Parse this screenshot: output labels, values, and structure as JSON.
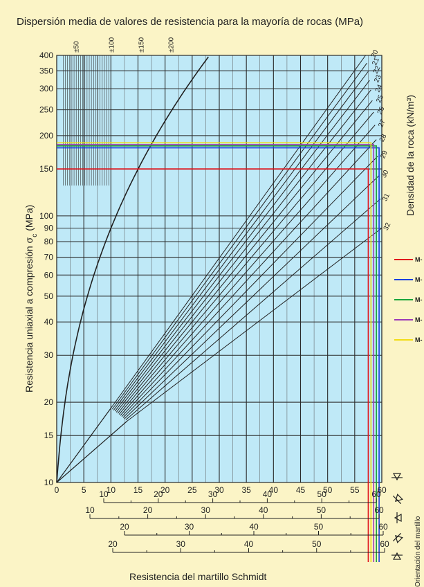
{
  "chart_data": {
    "type": "nomogram",
    "title": "Dispersión media de valores de resistencia para la mayoría de rocas (MPa)",
    "xlabel": "Resistencia del martillo Schmidt",
    "ylabel": "Resistencia uniaxial a compresión σ",
    "ylabel_sub": "c",
    "ylabel_unit": "(MPa)",
    "right_label": "Densidad de la roca (kN/m³)",
    "y_scale": "log",
    "ylim": [
      10,
      400
    ],
    "xlim": [
      0,
      60
    ],
    "x_ticks": [
      0,
      5,
      10,
      15,
      20,
      25,
      30,
      35,
      40,
      45,
      50,
      55,
      60
    ],
    "y_ticks": [
      10,
      15,
      20,
      30,
      40,
      50,
      60,
      70,
      80,
      90,
      100,
      150,
      200,
      250,
      300,
      350,
      400
    ],
    "y_tick_labels": [
      "10",
      "15",
      "20",
      "30",
      "40",
      "50",
      "60",
      "70",
      "80",
      "90",
      "100",
      "150",
      "200",
      "250",
      "300",
      "350",
      "400"
    ],
    "dispersion_labels": [
      "±50",
      "±100",
      "±150",
      "±200"
    ],
    "density_labels": [
      "20",
      "21",
      "22",
      "23",
      "24",
      "25",
      "26",
      "27",
      "28",
      "29",
      "30",
      "31",
      "32"
    ],
    "secondary_x_scales": [
      {
        "ticks": [
          10,
          20,
          30,
          40,
          50,
          60
        ],
        "labels": [
          "10",
          "20",
          "30",
          "40",
          "50",
          "60"
        ]
      },
      {
        "ticks": [
          10,
          20,
          30,
          40,
          50,
          60
        ],
        "labels": [
          "10",
          "20",
          "30",
          "40",
          "50",
          "60"
        ]
      },
      {
        "ticks": [
          20,
          30,
          40,
          50,
          60
        ],
        "labels": [
          "20",
          "30",
          "40",
          "50",
          "60"
        ]
      },
      {
        "ticks": [
          20,
          30,
          40,
          50,
          60
        ],
        "labels": [
          "20",
          "30",
          "40",
          "50",
          "60"
        ]
      }
    ],
    "readings": [
      {
        "name": "M-",
        "color": "#e0141c",
        "ucs": 150,
        "rebound": 57.5
      },
      {
        "name": "M-",
        "color": "#1a3fe0",
        "ucs": 180,
        "rebound": 59.5
      },
      {
        "name": "M-",
        "color": "#1aa53a",
        "ucs": 183,
        "rebound": 59
      },
      {
        "name": "M-",
        "color": "#9c3ab8",
        "ucs": 185,
        "rebound": 58.5
      },
      {
        "name": "M-",
        "color": "#f2dc13",
        "ucs": 188,
        "rebound": 58
      }
    ],
    "orientation_label": "Orientación del martillo"
  }
}
